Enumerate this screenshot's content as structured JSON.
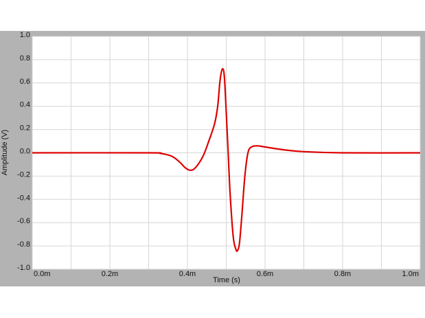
{
  "chart_data": {
    "type": "line",
    "xlabel": "Time (s)",
    "ylabel": "Amplitude (V)",
    "xlim": [
      0,
      1.0
    ],
    "ylim": [
      -1.0,
      1.0
    ],
    "xticks": [
      0,
      0.2,
      0.4,
      0.6,
      0.8,
      1.0
    ],
    "xtick_labels": [
      "0.0m",
      "0.2m",
      "0.4m",
      "0.6m",
      "0.8m",
      "1.0m"
    ],
    "x_units": "ms",
    "yticks": [
      -1.0,
      -0.8,
      -0.6,
      -0.4,
      -0.2,
      0.0,
      0.2,
      0.4,
      0.6,
      0.8,
      1.0
    ],
    "ytick_labels": [
      "-1.0",
      "-0.8",
      "-0.6",
      "-0.4",
      "-0.2",
      "0.0",
      "0.2",
      "0.4",
      "0.6",
      "0.8",
      "1.0"
    ],
    "grid": true,
    "series_color": "#dd0000",
    "series": [
      {
        "x": [
          0,
          0.3,
          0.33,
          0.36,
          0.38,
          0.395,
          0.407,
          0.42,
          0.44,
          0.455,
          0.47,
          0.478,
          0.484,
          0.49,
          0.495,
          0.5,
          0.505,
          0.51,
          0.518,
          0.525,
          0.529,
          0.534,
          0.54,
          0.548,
          0.556,
          0.565,
          0.58,
          0.6,
          0.65,
          0.7,
          0.8,
          1.0
        ],
        "y": [
          0,
          0,
          -0.005,
          -0.03,
          -0.08,
          -0.13,
          -0.15,
          -0.13,
          -0.03,
          0.1,
          0.25,
          0.4,
          0.62,
          0.72,
          0.66,
          0.35,
          0.0,
          -0.35,
          -0.72,
          -0.83,
          -0.84,
          -0.78,
          -0.55,
          -0.2,
          0.0,
          0.05,
          0.06,
          0.05,
          0.025,
          0.01,
          0,
          0
        ]
      }
    ]
  }
}
